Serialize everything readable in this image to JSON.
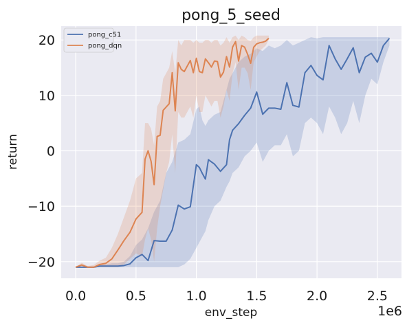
{
  "chart_data": {
    "type": "line",
    "title": "pong_5_seed",
    "xlabel": "env_step",
    "ylabel": "return",
    "x_multiplier_label": "1e6",
    "xlim": [
      -0.12,
      2.7
    ],
    "ylim": [
      -23,
      22.5
    ],
    "x_ticks": [
      0.0,
      0.5,
      1.0,
      1.5,
      2.0,
      2.5
    ],
    "x_tick_labels": [
      "0.0",
      "0.5",
      "1.0",
      "1.5",
      "2.0",
      "2.5"
    ],
    "y_ticks": [
      -20,
      -10,
      0,
      10,
      20
    ],
    "y_tick_labels": [
      "−20",
      "−10",
      "0",
      "10",
      "20"
    ],
    "grid": true,
    "legend_position": "top-left",
    "series": [
      {
        "name": "pong_c51",
        "color": "#4c72b0",
        "x": [
          0.0,
          0.05,
          0.1,
          0.15,
          0.2,
          0.25,
          0.3,
          0.35,
          0.4,
          0.45,
          0.5,
          0.55,
          0.6,
          0.65,
          0.7,
          0.75,
          0.8,
          0.85,
          0.9,
          0.95,
          1.0,
          1.025,
          1.05,
          1.075,
          1.1,
          1.15,
          1.2,
          1.25,
          1.275,
          1.3,
          1.35,
          1.4,
          1.45,
          1.5,
          1.55,
          1.6,
          1.65,
          1.7,
          1.75,
          1.8,
          1.85,
          1.9,
          1.95,
          2.0,
          2.05,
          2.1,
          2.15,
          2.2,
          2.25,
          2.3,
          2.35,
          2.4,
          2.45,
          2.5,
          2.55,
          2.6
        ],
        "y": [
          -21,
          -21,
          -21,
          -21,
          -20.8,
          -20.8,
          -20.8,
          -20.8,
          -20.7,
          -20.4,
          -19.3,
          -18.7,
          -19.8,
          -16.2,
          -16.3,
          -16.3,
          -14.3,
          -9.8,
          -10.5,
          -10.1,
          -2.5,
          -3,
          -4.1,
          -5.1,
          -1.6,
          -2.4,
          -3.7,
          -2.5,
          2.0,
          3.7,
          4.9,
          6.4,
          7.7,
          10.6,
          6.6,
          7.7,
          7.7,
          7.5,
          12.3,
          8.2,
          7.9,
          14.1,
          15.4,
          13.6,
          12.8,
          19.0,
          16.6,
          14.7,
          16.6,
          18.6,
          14.1,
          16.9,
          17.6,
          16.0,
          19.0,
          20.3
        ],
        "lower": [
          -21,
          -21,
          -21,
          -21,
          -21,
          -21,
          -21,
          -21,
          -21,
          -21,
          -21,
          -21,
          -21,
          -21,
          -21,
          -21,
          -21,
          -21,
          -20.5,
          -19.5,
          -17.5,
          -16.5,
          -15.5,
          -14.5,
          -12.5,
          -10,
          -9,
          -6.5,
          -5.5,
          -4,
          -3,
          -1,
          0,
          1.5,
          -2,
          0,
          1,
          1,
          3,
          -1,
          0,
          5,
          6,
          5,
          3,
          8,
          6,
          3,
          5,
          9,
          5,
          10,
          13,
          12,
          16,
          19
        ],
        "upper": [
          -21,
          -21,
          -21,
          -21,
          -20.5,
          -20.5,
          -20.3,
          -20.3,
          -20,
          -19,
          -17,
          -16,
          -14,
          -11,
          -9,
          -4,
          -2,
          1.5,
          2,
          3,
          7.5,
          8,
          5.5,
          4.5,
          5.5,
          6.5,
          7,
          11,
          13,
          14,
          16,
          17,
          17.5,
          18.5,
          18,
          19,
          18.5,
          19,
          20,
          19,
          19.5,
          20,
          20.5,
          20.3,
          20.5,
          20.5,
          20.5,
          20.5,
          20.5,
          20.5,
          20.5,
          20.5,
          20.5,
          20.5,
          20.5,
          20.5
        ]
      },
      {
        "name": "pong_dqn",
        "color": "#dd8452",
        "x": [
          0.0,
          0.05,
          0.1,
          0.15,
          0.2,
          0.25,
          0.3,
          0.35,
          0.4,
          0.45,
          0.5,
          0.55,
          0.575,
          0.6,
          0.625,
          0.65,
          0.675,
          0.7,
          0.725,
          0.75,
          0.775,
          0.8,
          0.825,
          0.85,
          0.875,
          0.9,
          0.925,
          0.95,
          0.975,
          1.0,
          1.025,
          1.05,
          1.075,
          1.1,
          1.125,
          1.15,
          1.175,
          1.2,
          1.225,
          1.25,
          1.275,
          1.3,
          1.325,
          1.35,
          1.375,
          1.4,
          1.425,
          1.45,
          1.475,
          1.5,
          1.525,
          1.55,
          1.575,
          1.6
        ],
        "y": [
          -21,
          -20.6,
          -21,
          -21,
          -20.5,
          -20.3,
          -19.5,
          -17.9,
          -16.2,
          -14.7,
          -12.3,
          -11.1,
          -1.5,
          0,
          -1.9,
          -6.1,
          2.6,
          2.8,
          7.3,
          7.9,
          8.5,
          14.1,
          7.2,
          15.9,
          14.7,
          14.3,
          15.3,
          16.3,
          14.1,
          16.7,
          14.3,
          14.1,
          16.6,
          15.9,
          15.1,
          16.2,
          16.1,
          13.3,
          14.2,
          17.0,
          15.1,
          18.7,
          19.7,
          16.2,
          19.0,
          18.7,
          17.4,
          15.8,
          18.7,
          19.3,
          19.5,
          19.6,
          19.8,
          20.3
        ],
        "lower": [
          -21,
          -21,
          -21,
          -21,
          -21,
          -21,
          -21,
          -21,
          -20.5,
          -19.5,
          -18.5,
          -19,
          -16,
          -14,
          -16,
          -20,
          -14,
          -10,
          -7,
          -4,
          -2,
          3,
          -4,
          7,
          6,
          6,
          7,
          8,
          6,
          10,
          7,
          7,
          10,
          9,
          8,
          9,
          9,
          6,
          8,
          11,
          9,
          14,
          16,
          11,
          15,
          15,
          14,
          11,
          16,
          17,
          18,
          18.5,
          19,
          20
        ],
        "upper": [
          -21,
          -20.2,
          -20.8,
          -20.6,
          -19.8,
          -19.3,
          -17.5,
          -15,
          -12,
          -9,
          -5,
          -4,
          5,
          5,
          4,
          1,
          8,
          9,
          13,
          14,
          15,
          18,
          14,
          20,
          19,
          20,
          20,
          20,
          19.5,
          20,
          19.5,
          19.5,
          20,
          20,
          19.5,
          20,
          20,
          19,
          19.5,
          20.5,
          19.5,
          20.5,
          20.8,
          20,
          20.8,
          20.5,
          20,
          19.8,
          20.5,
          20.8,
          20.8,
          20.8,
          20.8,
          20.8
        ]
      }
    ]
  }
}
